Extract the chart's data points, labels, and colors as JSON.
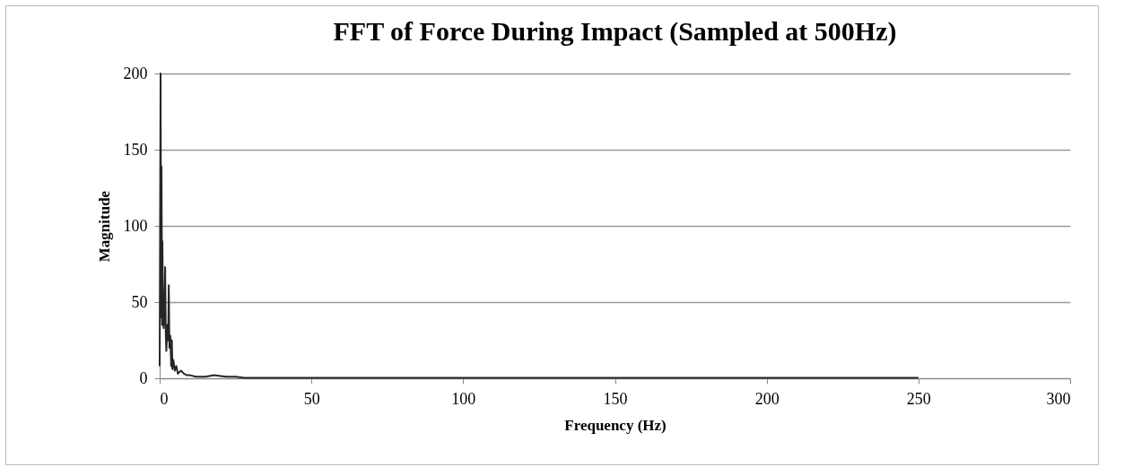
{
  "chart_data": {
    "type": "line",
    "title": "FFT of Force During Impact (Sampled at 500Hz)",
    "xlabel": "Frequency (Hz)",
    "ylabel": "Magnitude",
    "series": [
      {
        "color": "#262626",
        "x": [
          0,
          0.3,
          0.5,
          0.6,
          0.8,
          0.9,
          1.1,
          1.3,
          1.5,
          1.8,
          2.0,
          2.2,
          2.5,
          2.8,
          3.0,
          3.2,
          3.5,
          3.8,
          4.0,
          4.2,
          4.5,
          5.0,
          5.5,
          6.0,
          7.0,
          8.0,
          9.0,
          10,
          12,
          15,
          18,
          20,
          22,
          25,
          28,
          30,
          50,
          100,
          150,
          200,
          250
        ],
        "values": [
          8,
          200,
          40,
          139,
          35,
          90,
          45,
          33,
          40,
          73,
          30,
          18,
          35,
          25,
          61,
          20,
          28,
          8,
          25,
          6,
          12,
          5,
          8,
          3,
          5,
          3,
          2,
          2,
          1,
          1,
          2,
          1.5,
          1,
          1,
          0.3,
          0.3,
          0.3,
          0.3,
          0.3,
          0.3,
          0.3
        ]
      }
    ],
    "xlim": [
      0,
      300
    ],
    "xticks": [
      0,
      50,
      100,
      150,
      200,
      250,
      300
    ],
    "ylim": [
      0,
      200
    ],
    "yticks": [
      0,
      50,
      100,
      150,
      200
    ],
    "grid": "y",
    "marker": "none",
    "line_style": "solid"
  }
}
